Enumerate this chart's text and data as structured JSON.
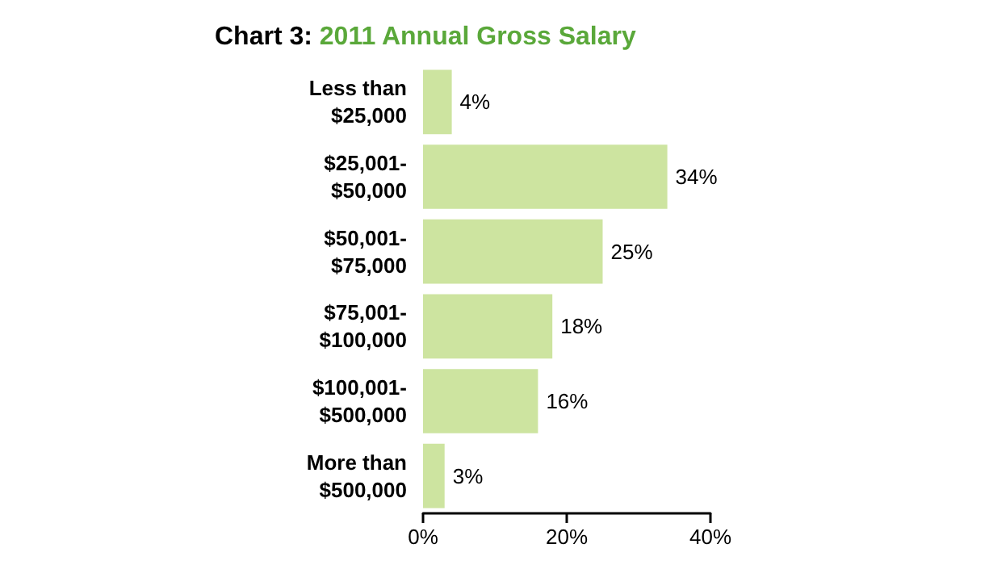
{
  "chart_data": {
    "type": "bar",
    "orientation": "horizontal",
    "title": "Chart 3: 2011 Annual Gross Salary",
    "categories": [
      "Less than\n$25,000",
      "$25,001-\n$50,000",
      "$50,001-\n$75,000",
      "$75,001-\n$100,000",
      "$100,001-\n$500,000",
      "More than\n$500,000"
    ],
    "values": [
      4,
      34,
      25,
      18,
      16,
      3
    ],
    "value_labels": [
      "4%",
      "34%",
      "25%",
      "18%",
      "16%",
      "3%"
    ],
    "color": "#cde4a0",
    "xlim": [
      0,
      40
    ],
    "xticks": [
      {
        "value": 0,
        "label": "0%"
      },
      {
        "value": 20,
        "label": "20%"
      },
      {
        "value": 40,
        "label": "40%"
      }
    ],
    "grid": false
  }
}
